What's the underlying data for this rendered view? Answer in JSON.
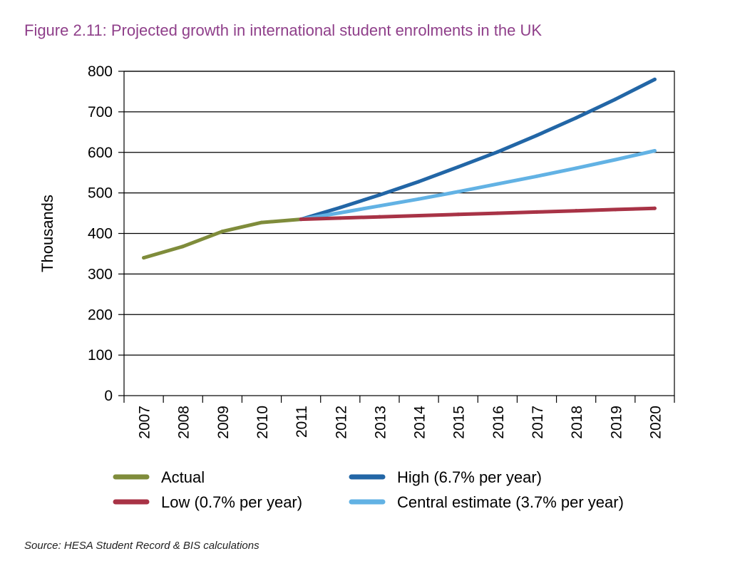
{
  "title": "Figure 2.11: Projected growth in international student enrolments in the UK",
  "source": "Source: HESA Student Record & BIS calculations",
  "colors": {
    "title": "#8f3f8a",
    "actual": "#7f8c3b",
    "high": "#2266a6",
    "low": "#a83346",
    "central": "#62b2e4"
  },
  "chart_data": {
    "type": "line",
    "title": "Figure 2.11: Projected growth in international student enrolments in the UK",
    "xlabel": "",
    "ylabel": "Thousands",
    "ylim": [
      0,
      800
    ],
    "yticks": [
      0,
      100,
      200,
      300,
      400,
      500,
      600,
      700,
      800
    ],
    "grid": true,
    "legend_position": "bottom",
    "categories": [
      "2007",
      "2008",
      "2009",
      "2010",
      "2011",
      "2012",
      "2013",
      "2014",
      "2015",
      "2016",
      "2017",
      "2018",
      "2019",
      "2020"
    ],
    "series": [
      {
        "name": "Actual",
        "color": "#7f8c3b",
        "points": [
          [
            "2007",
            340
          ],
          [
            "2008",
            368
          ],
          [
            "2009",
            405
          ],
          [
            "2010",
            427
          ],
          [
            "2011",
            435
          ]
        ]
      },
      {
        "name": "High (6.7% per year)",
        "color": "#2266a6",
        "points": [
          [
            "2011",
            435
          ],
          [
            "2012",
            464
          ],
          [
            "2013",
            495
          ],
          [
            "2014",
            528
          ],
          [
            "2015",
            564
          ],
          [
            "2016",
            601
          ],
          [
            "2017",
            642
          ],
          [
            "2018",
            685
          ],
          [
            "2019",
            731
          ],
          [
            "2020",
            780
          ]
        ]
      },
      {
        "name": "Central estimate (3.7% per year)",
        "color": "#62b2e4",
        "points": [
          [
            "2011",
            435
          ],
          [
            "2012",
            451
          ],
          [
            "2013",
            468
          ],
          [
            "2014",
            485
          ],
          [
            "2015",
            503
          ],
          [
            "2016",
            522
          ],
          [
            "2017",
            541
          ],
          [
            "2018",
            561
          ],
          [
            "2019",
            582
          ],
          [
            "2020",
            604
          ]
        ]
      },
      {
        "name": "Low (0.7% per year)",
        "color": "#a83346",
        "points": [
          [
            "2011",
            435
          ],
          [
            "2012",
            438
          ],
          [
            "2013",
            441
          ],
          [
            "2014",
            444
          ],
          [
            "2015",
            447
          ],
          [
            "2016",
            450
          ],
          [
            "2017",
            453
          ],
          [
            "2018",
            456
          ],
          [
            "2019",
            459
          ],
          [
            "2020",
            462
          ]
        ]
      }
    ],
    "legend": [
      {
        "series": "Actual",
        "label": "Actual",
        "row": 0,
        "col": 0
      },
      {
        "series": "High (6.7% per year)",
        "label": "High (6.7% per year)",
        "row": 0,
        "col": 1
      },
      {
        "series": "Low (0.7% per year)",
        "label": "Low (0.7% per year)",
        "row": 1,
        "col": 0
      },
      {
        "series": "Central estimate (3.7% per year)",
        "label": "Central estimate (3.7% per year)",
        "row": 1,
        "col": 1
      }
    ]
  }
}
